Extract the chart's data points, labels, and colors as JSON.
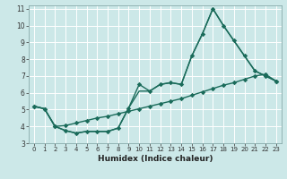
{
  "title": "",
  "xlabel": "Humidex (Indice chaleur)",
  "bg_color": "#cce8e8",
  "grid_color": "#ffffff",
  "line_color": "#1a6b5a",
  "xlim": [
    -0.5,
    23.5
  ],
  "ylim": [
    3,
    11.2
  ],
  "xticks": [
    0,
    1,
    2,
    3,
    4,
    5,
    6,
    7,
    8,
    9,
    10,
    11,
    12,
    13,
    14,
    15,
    16,
    17,
    18,
    19,
    20,
    21,
    22,
    23
  ],
  "yticks": [
    3,
    4,
    5,
    6,
    7,
    8,
    9,
    10,
    11
  ],
  "line1_x": [
    0,
    1,
    2,
    3,
    4,
    5,
    6,
    7,
    8,
    9,
    10,
    11,
    12,
    13,
    14,
    15,
    16,
    17,
    18,
    19,
    20,
    21,
    22,
    23
  ],
  "line1_y": [
    5.2,
    5.05,
    4.0,
    3.75,
    3.6,
    3.7,
    3.7,
    3.7,
    3.9,
    5.1,
    6.5,
    6.1,
    6.5,
    6.6,
    6.5,
    8.2,
    9.5,
    11.0,
    10.0,
    9.1,
    8.2,
    7.3,
    7.0,
    6.7
  ],
  "line2_x": [
    0,
    1,
    2,
    3,
    4,
    5,
    6,
    7,
    8,
    9,
    10,
    11,
    12,
    13,
    14,
    15,
    16,
    17,
    18,
    19,
    20,
    21,
    22,
    23
  ],
  "line2_y": [
    5.2,
    5.05,
    4.0,
    4.05,
    4.2,
    4.35,
    4.5,
    4.6,
    4.75,
    4.9,
    5.05,
    5.2,
    5.35,
    5.5,
    5.65,
    5.85,
    6.05,
    6.25,
    6.45,
    6.6,
    6.8,
    7.0,
    7.1,
    6.7
  ],
  "line3_x": [
    0,
    1,
    2,
    3,
    4,
    5,
    6,
    7,
    8,
    9,
    10,
    11,
    12,
    13,
    14,
    15,
    16,
    17,
    18,
    19,
    20,
    21,
    22,
    23
  ],
  "line3_y": [
    5.2,
    5.05,
    4.0,
    3.75,
    3.6,
    3.7,
    3.7,
    3.7,
    3.9,
    5.1,
    6.1,
    6.1,
    6.5,
    6.6,
    6.5,
    8.2,
    9.5,
    11.0,
    10.0,
    9.1,
    8.2,
    7.3,
    7.0,
    6.7
  ],
  "xlabel_fontsize": 6.5,
  "tick_fontsize": 5.0,
  "linewidth": 1.0,
  "markersize": 2.8
}
